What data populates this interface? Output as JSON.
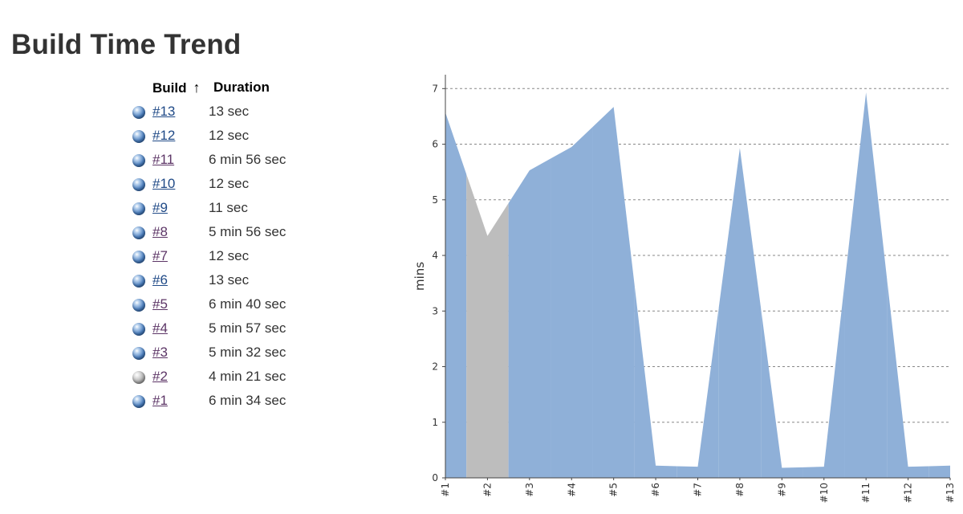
{
  "page": {
    "title": "Build Time Trend"
  },
  "table": {
    "header_build": "Build",
    "sort_indicator": "↑",
    "header_duration": "Duration",
    "rows": [
      {
        "build": "#13",
        "duration": "13 sec",
        "status": "blue",
        "visited": false
      },
      {
        "build": "#12",
        "duration": "12 sec",
        "status": "blue",
        "visited": false
      },
      {
        "build": "#11",
        "duration": "6 min 56 sec",
        "status": "blue",
        "visited": true
      },
      {
        "build": "#10",
        "duration": "12 sec",
        "status": "blue",
        "visited": false
      },
      {
        "build": "#9",
        "duration": "11 sec",
        "status": "blue",
        "visited": false
      },
      {
        "build": "#8",
        "duration": "5 min 56 sec",
        "status": "blue",
        "visited": true
      },
      {
        "build": "#7",
        "duration": "12 sec",
        "status": "blue",
        "visited": true
      },
      {
        "build": "#6",
        "duration": "13 sec",
        "status": "blue",
        "visited": false
      },
      {
        "build": "#5",
        "duration": "6 min 40 sec",
        "status": "blue",
        "visited": true
      },
      {
        "build": "#4",
        "duration": "5 min 57 sec",
        "status": "blue",
        "visited": true
      },
      {
        "build": "#3",
        "duration": "5 min 32 sec",
        "status": "blue",
        "visited": true
      },
      {
        "build": "#2",
        "duration": "4 min 21 sec",
        "status": "grey",
        "visited": true
      },
      {
        "build": "#1",
        "duration": "6 min 34 sec",
        "status": "blue",
        "visited": true
      }
    ]
  },
  "colors": {
    "success_area": "#8fb0d8",
    "failed_area": "#bdbdbd",
    "gridline": "#888888",
    "axis": "#444444"
  },
  "chart_data": {
    "type": "area",
    "title": "",
    "xlabel": "",
    "ylabel": "mins",
    "x": [
      "#1",
      "#2",
      "#3",
      "#4",
      "#5",
      "#6",
      "#7",
      "#8",
      "#9",
      "#10",
      "#11",
      "#12",
      "#13"
    ],
    "series": [
      {
        "status": "success",
        "values": [
          6.57,
          4.35,
          5.53,
          5.95,
          6.67,
          0.22,
          0.2,
          5.93,
          0.18,
          0.2,
          6.93,
          0.2,
          0.22
        ]
      }
    ],
    "failed_builds": [
      "#2"
    ],
    "ylim": [
      0,
      7.25
    ],
    "yticks": [
      0,
      1,
      2,
      3,
      4,
      5,
      6,
      7
    ],
    "grid": true,
    "legend": "none"
  }
}
